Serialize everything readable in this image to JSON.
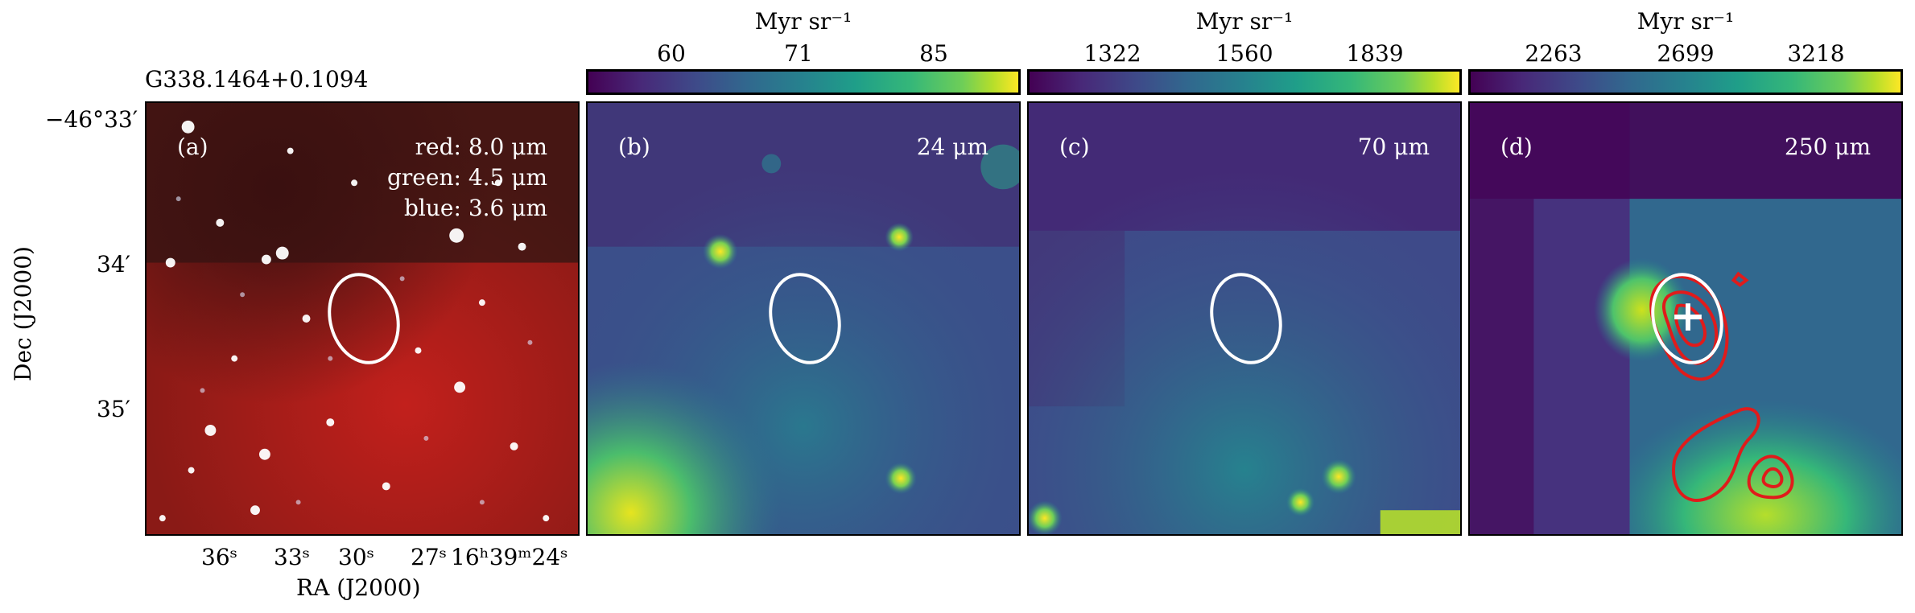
{
  "source_name": "G338.1464+0.1094",
  "panels": [
    {
      "label": "(a)",
      "legend": [
        "red: 8.0 μm",
        "green: 4.5 μm",
        "blue: 3.6 μm"
      ]
    },
    {
      "label": "(b)",
      "wavelength": "24 μm",
      "cbar_title": "Myr sr⁻¹",
      "cbar_ticks": [
        "60",
        "71",
        "85"
      ]
    },
    {
      "label": "(c)",
      "wavelength": "70 μm",
      "cbar_title": "Myr sr⁻¹",
      "cbar_ticks": [
        "1322",
        "1560",
        "1839"
      ]
    },
    {
      "label": "(d)",
      "wavelength": "250 μm",
      "cbar_title": "Myr sr⁻¹",
      "cbar_ticks": [
        "2263",
        "2699",
        "3218"
      ]
    }
  ],
  "axes": {
    "xlabel": "RA (J2000)",
    "ylabel": "Dec (J2000)",
    "yticks": [
      "−46°33′",
      "34′",
      "35′"
    ],
    "xticks": [
      "36ˢ",
      "33ˢ",
      "30ˢ",
      "27ˢ",
      "16ʰ39ᵐ24ˢ"
    ]
  },
  "colors": {
    "colormap": "viridis",
    "contour": "#e01b1b",
    "ellipse": "#ffffff"
  }
}
